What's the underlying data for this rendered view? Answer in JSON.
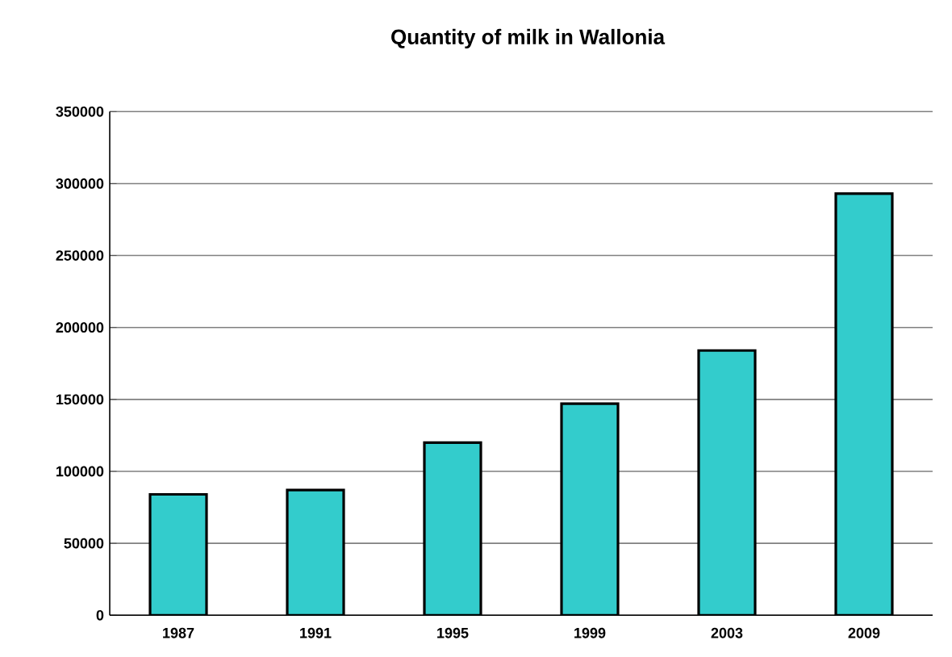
{
  "chart_data": {
    "type": "bar",
    "title": "Quantity of milk in Wallonia",
    "categories": [
      "1987",
      "1991",
      "1995",
      "1999",
      "2003",
      "2009"
    ],
    "values": [
      84000,
      87000,
      120000,
      147000,
      184000,
      293000
    ],
    "color": "#33cccc",
    "ylim": [
      0,
      350000
    ],
    "yticks": [
      0,
      50000,
      100000,
      150000,
      200000,
      250000,
      300000,
      350000
    ],
    "grid": "y"
  }
}
